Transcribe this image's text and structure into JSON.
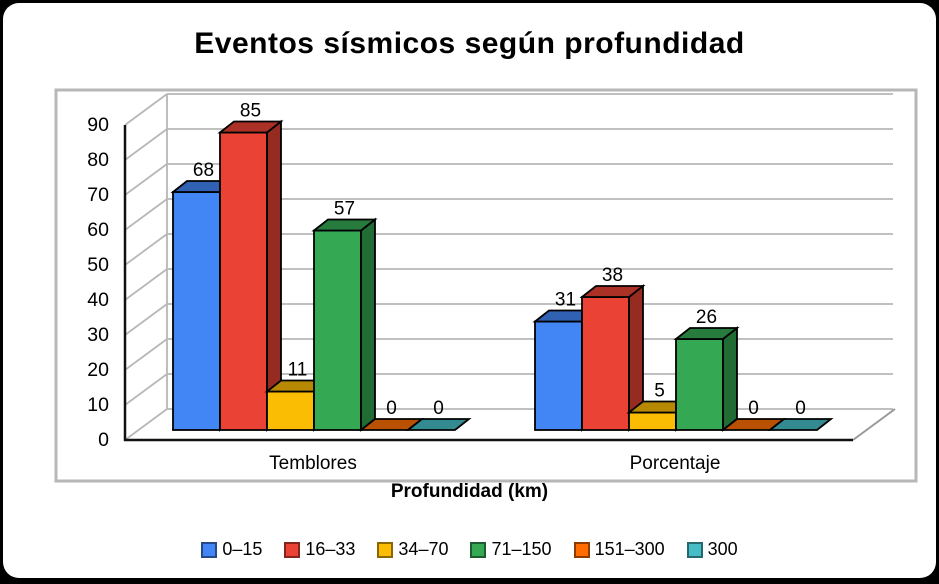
{
  "page": {
    "background": "#000000",
    "card_background": "#ffffff"
  },
  "chart_data": {
    "type": "bar",
    "style": "3d-clustered-column",
    "title": "Eventos sísmicos según profundidad",
    "xlabel": "Profundidad (km)",
    "ylabel": "",
    "categories": [
      "Temblores",
      "Porcentaje"
    ],
    "series": [
      {
        "name": "0–15",
        "color": "#4285F4",
        "values": [
          68,
          31
        ]
      },
      {
        "name": "16–33",
        "color": "#EA4335",
        "values": [
          85,
          38
        ]
      },
      {
        "name": "34–70",
        "color": "#FBBC04",
        "values": [
          11,
          5
        ]
      },
      {
        "name": "71–150",
        "color": "#34A853",
        "values": [
          57,
          26
        ]
      },
      {
        "name": "151–300",
        "color": "#FF6D01",
        "values": [
          0,
          0
        ]
      },
      {
        "name": "300",
        "color": "#46BDC6",
        "values": [
          0,
          0
        ]
      }
    ],
    "ylim": [
      0,
      90
    ],
    "yticks": [
      0,
      10,
      20,
      30,
      40,
      50,
      60,
      70,
      80,
      90
    ],
    "data_labels": true,
    "legend_position": "bottom",
    "grid": true,
    "axis_color": "#111111",
    "grid_color": "#b7b7b7"
  }
}
